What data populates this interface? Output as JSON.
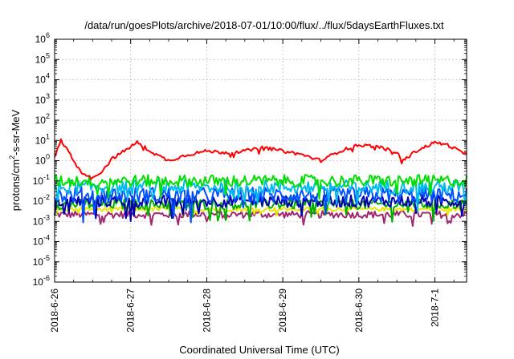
{
  "chart_data": {
    "type": "line",
    "title": "/data/run/goesPlots/archive/2018-07-01/10:00/flux/../flux/5daysEarthFluxes.txt",
    "xlabel": "Coordinated Universal Time (UTC)",
    "ylabel": "protons/cm²-s-sr-MeV",
    "ylabel_parts": {
      "pre": "protons/cm",
      "sup": "2",
      "post": "-s-sr-MeV"
    },
    "yscale": "log",
    "ylim": [
      1e-06,
      1000000.0
    ],
    "y_ticks": [
      {
        "base": "10",
        "exp": "-6"
      },
      {
        "base": "10",
        "exp": "-5"
      },
      {
        "base": "10",
        "exp": "-4"
      },
      {
        "base": "10",
        "exp": "-3"
      },
      {
        "base": "10",
        "exp": "-2"
      },
      {
        "base": "10",
        "exp": "-1"
      },
      {
        "base": "10",
        "exp": "0"
      },
      {
        "base": "10",
        "exp": "1"
      },
      {
        "base": "10",
        "exp": "2"
      },
      {
        "base": "10",
        "exp": "3"
      },
      {
        "base": "10",
        "exp": "4"
      },
      {
        "base": "10",
        "exp": "5"
      },
      {
        "base": "10",
        "exp": "6"
      }
    ],
    "xlim": [
      "2018-06-26 00:00",
      "2018-07-01 10:00"
    ],
    "x_ticks": [
      "2018-6-26",
      "2018-6-27",
      "2018-6-28",
      "2018-6-29",
      "2018-6-30",
      "2018-7-1"
    ],
    "grid": true,
    "series": [
      {
        "color": "#ff0000",
        "level": 2.5,
        "noise": 0.08,
        "points": [
          [
            "2018-06-26 00:00",
            1.5
          ],
          [
            "2018-06-26 02:00",
            10
          ],
          [
            "2018-06-26 05:00",
            2.0
          ],
          [
            "2018-06-26 08:00",
            0.3
          ],
          [
            "2018-06-26 12:00",
            0.15
          ],
          [
            "2018-06-26 15:00",
            0.3
          ],
          [
            "2018-06-26 18:00",
            1.2
          ],
          [
            "2018-06-26 22:00",
            3.0
          ],
          [
            "2018-06-27 00:00",
            5.0
          ],
          [
            "2018-06-27 02:00",
            8.0
          ],
          [
            "2018-06-27 08:00",
            2.0
          ],
          [
            "2018-06-27 12:00",
            1.0
          ],
          [
            "2018-06-27 18:00",
            2.0
          ],
          [
            "2018-06-28 00:00",
            3.0
          ],
          [
            "2018-06-28 06:00",
            2.5
          ],
          [
            "2018-06-28 12:00",
            3.0
          ],
          [
            "2018-06-28 18:00",
            4.5
          ],
          [
            "2018-06-29 00:00",
            3.0
          ],
          [
            "2018-06-29 06:00",
            2.0
          ],
          [
            "2018-06-29 12:00",
            1.0
          ],
          [
            "2018-06-29 18:00",
            3.0
          ],
          [
            "2018-06-30 00:00",
            6.0
          ],
          [
            "2018-06-30 06:00",
            5.0
          ],
          [
            "2018-06-30 12:00",
            2.5
          ],
          [
            "2018-06-30 14:00",
            1.0
          ],
          [
            "2018-06-30 18:00",
            3.0
          ],
          [
            "2018-07-01 00:00",
            8.0
          ],
          [
            "2018-07-01 04:00",
            6.0
          ],
          [
            "2018-07-01 10:00",
            2.0
          ]
        ]
      },
      {
        "color": "#00e000",
        "level": 0.1,
        "noise": 0.3,
        "points": [
          [
            "2018-06-26 00:00",
            0.1
          ],
          [
            "2018-07-01 10:00",
            0.1
          ]
        ]
      },
      {
        "color": "#00bbee",
        "level": 0.05,
        "noise": 0.35,
        "points": [
          [
            "2018-06-26 00:00",
            0.05
          ],
          [
            "2018-07-01 10:00",
            0.05
          ]
        ]
      },
      {
        "color": "#0050ff",
        "level": 0.02,
        "noise": 0.4,
        "points": [
          [
            "2018-06-26 00:00",
            0.02
          ],
          [
            "2018-07-01 10:00",
            0.02
          ]
        ]
      },
      {
        "color": "#0000b0",
        "level": 0.01,
        "noise": 0.3,
        "points": [
          [
            "2018-06-26 00:00",
            0.01
          ],
          [
            "2018-07-01 10:00",
            0.01
          ]
        ]
      },
      {
        "color": "#00b000",
        "level": 0.007,
        "noise": 0.25,
        "points": [
          [
            "2018-06-26 00:00",
            0.007
          ],
          [
            "2018-07-01 10:00",
            0.007
          ]
        ]
      },
      {
        "color": "#e8e800",
        "level": 0.004,
        "noise": 0.1,
        "points": [
          [
            "2018-06-26 00:00",
            0.004
          ],
          [
            "2018-07-01 10:00",
            0.004
          ]
        ]
      },
      {
        "color": "#a02870",
        "level": 0.0022,
        "noise": 0.18,
        "points": [
          [
            "2018-06-26 00:00",
            0.0022
          ],
          [
            "2018-07-01 10:00",
            0.0022
          ]
        ]
      }
    ]
  }
}
